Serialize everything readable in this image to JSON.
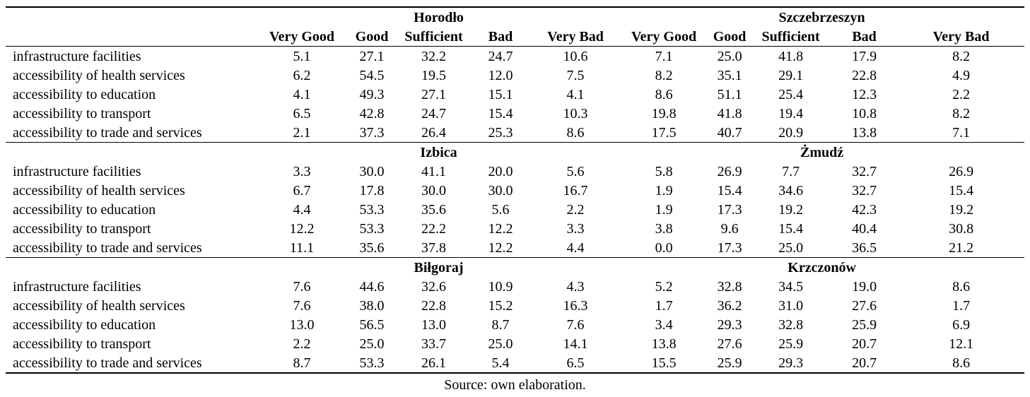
{
  "columns": [
    "Very Good",
    "Good",
    "Sufficient",
    "Bad",
    "Very Bad",
    "Very Good",
    "Good",
    "Sufficient",
    "Bad",
    "Very Bad"
  ],
  "sections": [
    {
      "left": "Horodło",
      "right": "Szczebrzeszyn",
      "rows": [
        {
          "label": "infrastructure facilities",
          "values": [
            "5.1",
            "27.1",
            "32.2",
            "24.7",
            "10.6",
            "7.1",
            "25.0",
            "41.8",
            "17.9",
            "8.2"
          ]
        },
        {
          "label": "accessibility of health services",
          "values": [
            "6.2",
            "54.5",
            "19.5",
            "12.0",
            "7.5",
            "8.2",
            "35.1",
            "29.1",
            "22.8",
            "4.9"
          ]
        },
        {
          "label": "accessibility to education",
          "values": [
            "4.1",
            "49.3",
            "27.1",
            "15.1",
            "4.1",
            "8.6",
            "51.1",
            "25.4",
            "12.3",
            "2.2"
          ]
        },
        {
          "label": "accessibility to transport",
          "values": [
            "6.5",
            "42.8",
            "24.7",
            "15.4",
            "10.3",
            "19.8",
            "41.8",
            "19.4",
            "10.8",
            "8.2"
          ]
        },
        {
          "label": "accessibility to trade and services",
          "values": [
            "2.1",
            "37.3",
            "26.4",
            "25.3",
            "8.6",
            "17.5",
            "40.7",
            "20.9",
            "13.8",
            "7.1"
          ]
        }
      ]
    },
    {
      "left": "Izbica",
      "right": "Żmudź",
      "rows": [
        {
          "label": "infrastructure facilities",
          "values": [
            "3.3",
            "30.0",
            "41.1",
            "20.0",
            "5.6",
            "5.8",
            "26.9",
            "7.7",
            "32.7",
            "26.9"
          ]
        },
        {
          "label": "accessibility of health services",
          "values": [
            "6.7",
            "17.8",
            "30.0",
            "30.0",
            "16.7",
            "1.9",
            "15.4",
            "34.6",
            "32.7",
            "15.4"
          ]
        },
        {
          "label": "accessibility to education",
          "values": [
            "4.4",
            "53.3",
            "35.6",
            "5.6",
            "2.2",
            "1.9",
            "17.3",
            "19.2",
            "42.3",
            "19.2"
          ]
        },
        {
          "label": "accessibility to transport",
          "values": [
            "12.2",
            "53.3",
            "22.2",
            "12.2",
            "3.3",
            "3.8",
            "9.6",
            "15.4",
            "40.4",
            "30.8"
          ]
        },
        {
          "label": "accessibility to trade and services",
          "values": [
            "11.1",
            "35.6",
            "37.8",
            "12.2",
            "4.4",
            "0.0",
            "17.3",
            "25.0",
            "36.5",
            "21.2"
          ]
        }
      ]
    },
    {
      "left": "Biłgoraj",
      "right": "Krzczonów",
      "rows": [
        {
          "label": "infrastructure facilities",
          "values": [
            "7.6",
            "44.6",
            "32.6",
            "10.9",
            "4.3",
            "5.2",
            "32.8",
            "34.5",
            "19.0",
            "8.6"
          ]
        },
        {
          "label": "accessibility of health services",
          "values": [
            "7.6",
            "38.0",
            "22.8",
            "15.2",
            "16.3",
            "1.7",
            "36.2",
            "31.0",
            "27.6",
            "1.7"
          ]
        },
        {
          "label": "accessibility to education",
          "values": [
            "13.0",
            "56.5",
            "13.0",
            "8.7",
            "7.6",
            "3.4",
            "29.3",
            "32.8",
            "25.9",
            "6.9"
          ]
        },
        {
          "label": "accessibility to transport",
          "values": [
            "2.2",
            "25.0",
            "33.7",
            "25.0",
            "14.1",
            "13.8",
            "27.6",
            "25.9",
            "20.7",
            "12.1"
          ]
        },
        {
          "label": "accessibility to trade and services",
          "values": [
            "8.7",
            "53.3",
            "26.1",
            "5.4",
            "6.5",
            "15.5",
            "25.9",
            "29.3",
            "20.7",
            "8.6"
          ]
        }
      ]
    }
  ],
  "source": "Source: own elaboration."
}
